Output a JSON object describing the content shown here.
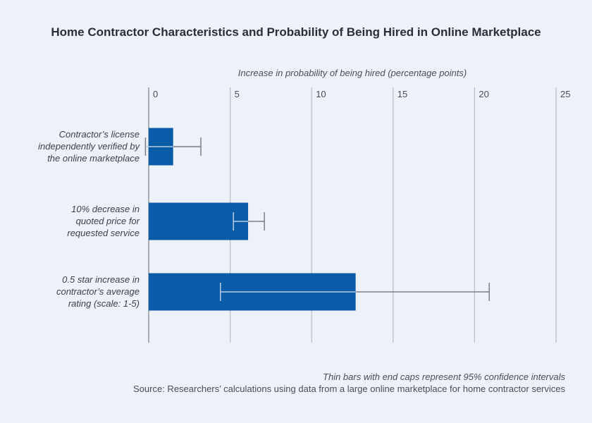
{
  "chart_data": {
    "type": "bar",
    "orientation": "horizontal",
    "title": "Home Contractor Characteristics and Probability of Being Hired in Online Marketplace",
    "xlabel": "Increase in probability of being hired (percentage points)",
    "ylabel": "",
    "xlim": [
      0,
      25
    ],
    "xticks": [
      0,
      5,
      10,
      15,
      20,
      25
    ],
    "grid": true,
    "categories": [
      "Contractor’s license independently verified by the online marketplace",
      "10% decrease in quoted price for requested service",
      "0.5 star increase in contractor’s average rating (scale: 1-5)"
    ],
    "category_lines": [
      [
        "Contractor’s license",
        "independently verified by",
        "the online marketplace"
      ],
      [
        "10% decrease in",
        "quoted price for",
        "requested service"
      ],
      [
        "0.5 star increase in",
        "contractor’s average",
        "rating (scale: 1-5)"
      ]
    ],
    "values": [
      1.5,
      6.1,
      12.7
    ],
    "ci_low": [
      -0.2,
      5.2,
      4.4
    ],
    "ci_high": [
      3.2,
      7.1,
      20.9
    ],
    "bar_color": "#0a5ca8",
    "notes": [
      "Thin bars with end caps represent 95% confidence intervals",
      "Source: Researchers’ calculations using data from a large online marketplace for home contractor services"
    ]
  }
}
